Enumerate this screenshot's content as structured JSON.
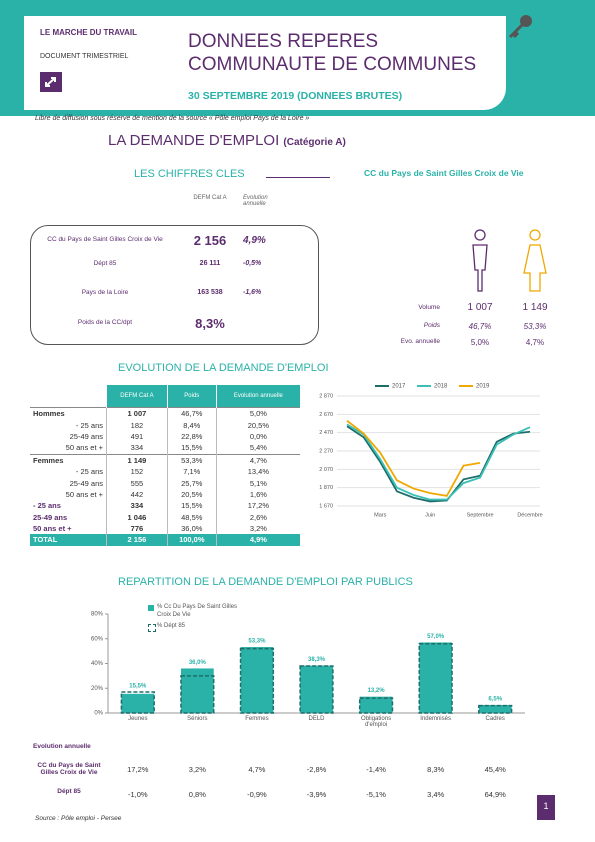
{
  "header": {
    "kicker": "LE MARCHE DU TRAVAIL",
    "doc_type": "DOCUMENT TRIMESTRIEL",
    "title_line1": "DONNEES REPERES",
    "title_line2": "COMMUNAUTE DE COMMUNES",
    "date": "30 SEPTEMBRE 2019 (DONNEES BRUTES)",
    "notice": "Libre de diffusion sous réserve de mention de la source « Pôle emploi Pays de la Loire »"
  },
  "main_title": "LA DEMANDE D'EMPLOI",
  "main_subtitle": "(Catégorie A)",
  "key_figures": {
    "title": "LES CHIFFRES CLES",
    "territory": "CC du Pays de Saint Gilles Croix de Vie",
    "columns": [
      "DEFM Cat A",
      "Evolution annuelle"
    ],
    "rows": [
      [
        "CC du Pays de Saint Gilles Croix de Vie",
        "2 156",
        "4,9%"
      ],
      [
        "Dépt 85",
        "26 111",
        "-0,5%"
      ],
      [
        "Pays de la Loire",
        "163 538",
        "-1,6%"
      ],
      [
        "Poids de la CC/dpt",
        "8,3%"
      ]
    ]
  },
  "gender": {
    "rows": [
      [
        "Volume",
        "1 007",
        "1 149"
      ],
      [
        "Poids",
        "46,7%",
        "53,3%"
      ],
      [
        "Evo. annuelle",
        "5,0%",
        "4,7%"
      ]
    ]
  },
  "evolution": {
    "title": "EVOLUTION DE LA DEMANDE D'EMPLOI",
    "table": {
      "columns": [
        "DEFM Cat A",
        "Poids",
        "Evolution annuelle"
      ],
      "rows": [
        [
          "Hommes",
          "1 007",
          "46,7%",
          "5,0%"
        ],
        [
          "- 25 ans",
          "182",
          "8,4%",
          "20,5%"
        ],
        [
          "25-49 ans",
          "491",
          "22,8%",
          "0,0%"
        ],
        [
          "50 ans et +",
          "334",
          "15,5%",
          "5,4%"
        ],
        [
          "Femmes",
          "1 149",
          "53,3%",
          "4,7%"
        ],
        [
          "- 25 ans",
          "152",
          "7,1%",
          "13,4%"
        ],
        [
          "25-49 ans",
          "555",
          "25,7%",
          "5,1%"
        ],
        [
          "50 ans et +",
          "442",
          "20,5%",
          "1,6%"
        ],
        [
          "- 25 ans",
          "334",
          "15,5%",
          "17,2%"
        ],
        [
          "25-49 ans",
          "1 046",
          "48,5%",
          "2,6%"
        ],
        [
          "50 ans et +",
          "776",
          "36,0%",
          "3,2%"
        ],
        [
          "TOTAL",
          "2 156",
          "100,0%",
          "4,9%"
        ]
      ]
    },
    "chart": {
      "type": "line",
      "categories": [
        null,
        null,
        "Mars",
        null,
        null,
        "Juin",
        null,
        null,
        "Septembre",
        null,
        null,
        "Décembre"
      ],
      "series": [
        {
          "name": "2017",
          "color": "#1d6e6a",
          "values": [
            2540,
            2420,
            2150,
            1830,
            1760,
            1720,
            1730,
            1960,
            2000,
            2370,
            2460,
            2480
          ]
        },
        {
          "name": "2018",
          "color": "#3cc0b6",
          "values": [
            2560,
            2450,
            2180,
            1870,
            1790,
            1740,
            1740,
            1920,
            1980,
            2340,
            2450,
            2530
          ]
        },
        {
          "name": "2019",
          "color": "#f0a800",
          "values": [
            2600,
            2460,
            2250,
            1950,
            1860,
            1810,
            1780,
            2110,
            2140,
            null,
            null,
            null
          ]
        }
      ],
      "ylim": [
        1670,
        2870
      ],
      "yticks": [
        {
          "value": 1670,
          "label": "1 670"
        },
        {
          "value": 1870,
          "label": "1 870"
        },
        {
          "value": 2070,
          "label": "2 070"
        },
        {
          "value": 2270,
          "label": "2 270"
        },
        {
          "value": 2470,
          "label": "2 470"
        },
        {
          "value": 2670,
          "label": "2 670"
        },
        {
          "value": 2870,
          "label": "2 870"
        }
      ],
      "grid": true
    }
  },
  "publics": {
    "title": "REPARTITION DE LA DEMANDE D'EMPLOI PAR PUBLICS",
    "chart": {
      "type": "bar",
      "categories": [
        "Jeunes",
        "Séniors",
        "Femmes",
        "DELD",
        "Obligations d'emploi",
        "Indemnisés",
        "Cadres"
      ],
      "series": [
        {
          "name": "% Cc Du Pays De Saint Gilles Croix De Vie",
          "color": "#2ab2a8",
          "values": [
            15.5,
            36.0,
            53.3,
            38.3,
            13.2,
            57.0,
            6.5
          ],
          "value_labels": [
            "15,5%",
            "36,0%",
            "53,3%",
            "38,3%",
            "13,2%",
            "57,0%",
            "6,5%"
          ]
        },
        {
          "name": "% Dépt 85",
          "color": "#1d6e6a",
          "values": [
            17,
            30,
            52,
            38,
            12,
            56,
            6
          ]
        }
      ],
      "ylim": [
        0,
        80
      ],
      "yticks": [
        {
          "value": 0,
          "label": "0%"
        },
        {
          "value": 20,
          "label": "20%"
        },
        {
          "value": 40,
          "label": "40%"
        },
        {
          "value": 60,
          "label": "60%"
        },
        {
          "value": 80,
          "label": "80%"
        }
      ]
    },
    "evolution": {
      "title": "Evolution annuelle",
      "rows": [
        {
          "label": "CC du Pays de Saint Gilles Croix de Vie",
          "values": [
            "17,2%",
            "3,2%",
            "4,7%",
            "-2,8%",
            "-1,4%",
            "8,3%",
            "45,4%"
          ]
        },
        {
          "label": "Dépt 85",
          "values": [
            "-1,0%",
            "0,8%",
            "-0,9%",
            "-3,9%",
            "-5,1%",
            "3,4%",
            "64,9%"
          ]
        }
      ]
    }
  },
  "source": "Source : Pôle emploi - Persee",
  "page_number": "1"
}
